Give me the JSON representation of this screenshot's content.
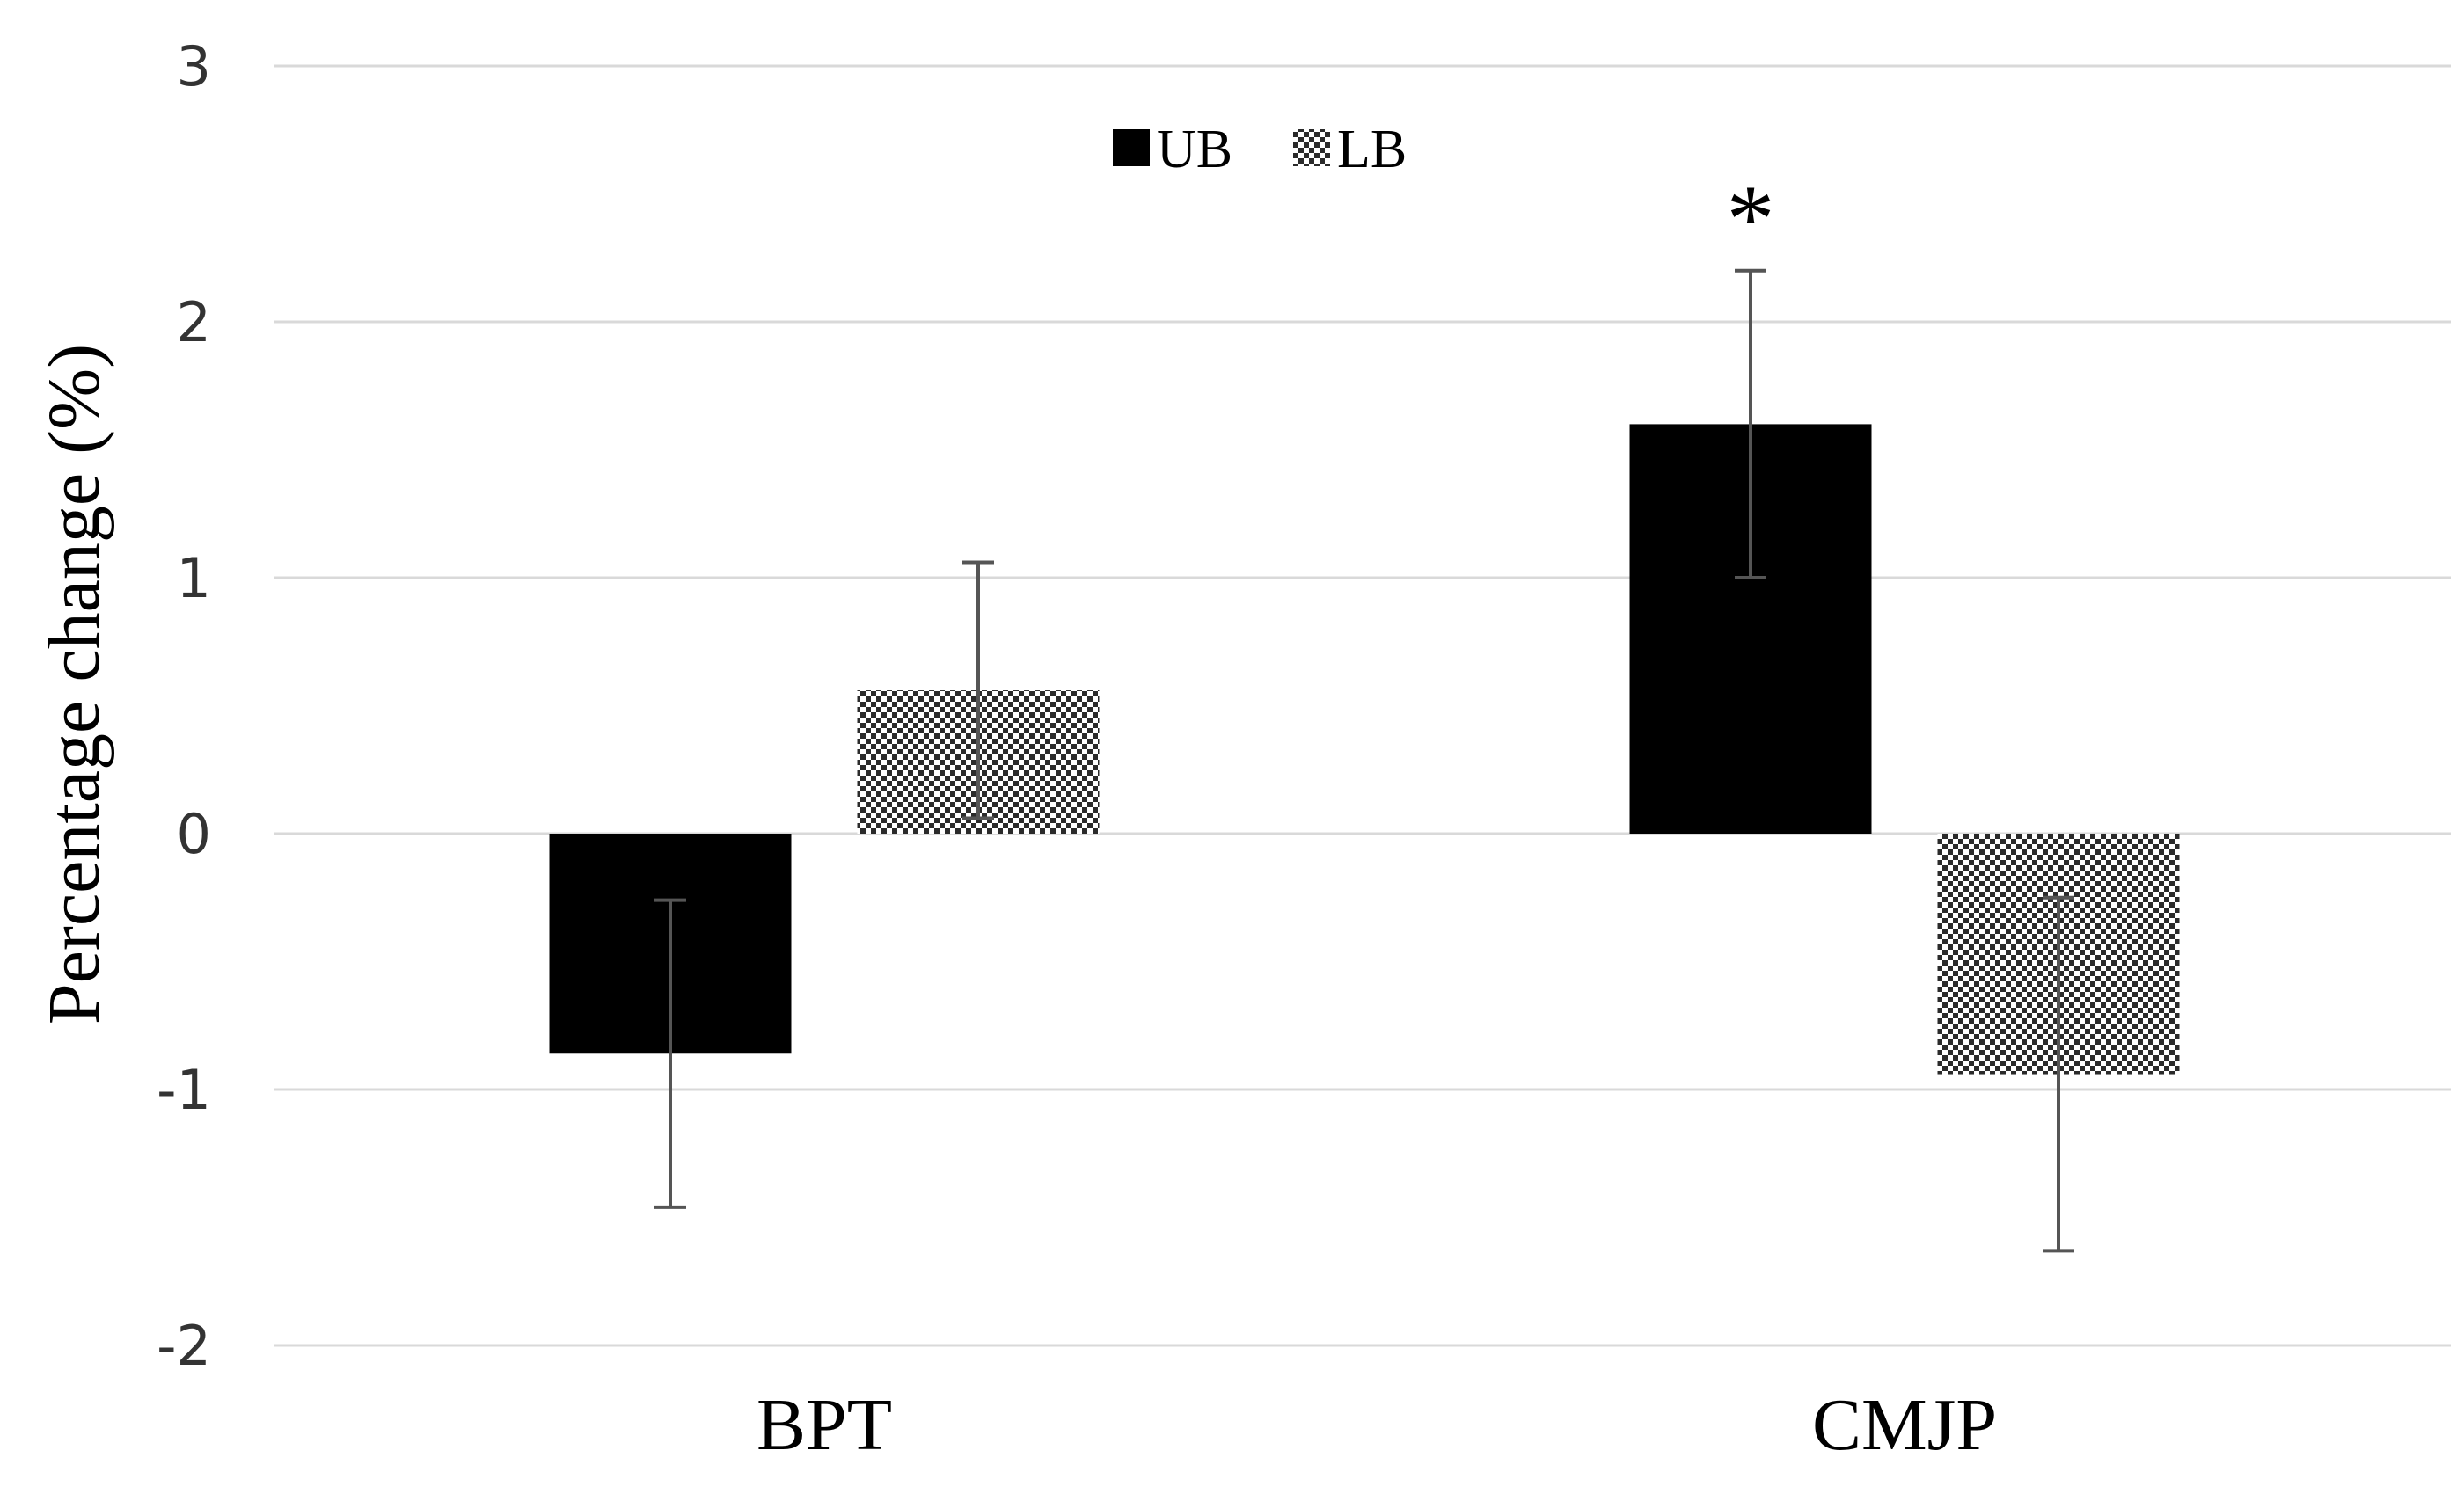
{
  "chart_data": {
    "type": "bar",
    "title": "",
    "xlabel": "",
    "ylabel": "Percentage change (%)",
    "ylim": [
      -2,
      3
    ],
    "yticks": [
      3,
      2,
      1,
      0,
      -1,
      -2
    ],
    "grid": true,
    "legend_position": "top-center",
    "categories": [
      "BPT",
      "CMJP"
    ],
    "series": [
      {
        "name": "UB",
        "pattern": "solid",
        "color": "#000000",
        "values": [
          -0.86,
          1.6
        ],
        "errors": [
          0.6,
          0.6
        ]
      },
      {
        "name": "LB",
        "pattern": "checkered",
        "color": "#333333",
        "values": [
          0.56,
          -0.94
        ],
        "errors": [
          0.5,
          0.69
        ]
      }
    ],
    "annotations": [
      {
        "text": "*",
        "category": "CMJP",
        "series": "UB"
      }
    ]
  }
}
